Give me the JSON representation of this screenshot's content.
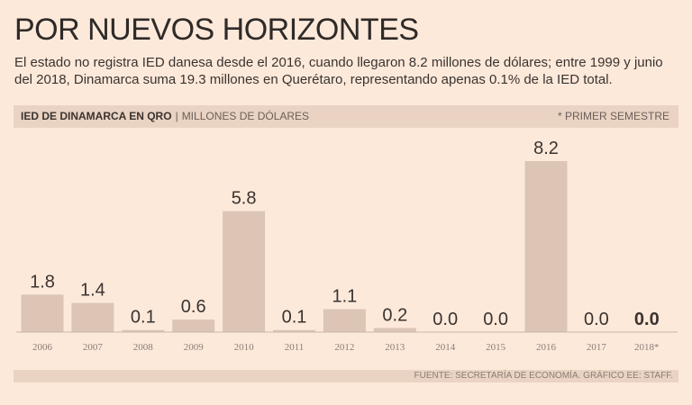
{
  "title": "POR NUEVOS HORIZONTES",
  "subtitle": "El estado no registra IED danesa desde el 2016, cuando llegaron 8.2 millones de dólares; entre 1999 y junio del 2018, Dinamarca suma 19.3 millones en Querétaro, representando apenas 0.1% de la IED total.",
  "band": {
    "label": "IED DE DINAMARCA EN QRO",
    "unit": "MILLONES DE DÓLARES",
    "note": "* PRIMER SEMESTRE"
  },
  "source": "FUENTE: SECRETARÍA DE ECONOMÍA. GRÁFICO EE: STAFF.",
  "colors": {
    "bar": "#dcc5b5",
    "background": "#fde9da",
    "band": "#ead3c2"
  },
  "chart_data": {
    "type": "bar",
    "categories": [
      "2006",
      "2007",
      "2008",
      "2009",
      "2010",
      "2011",
      "2012",
      "2013",
      "2014",
      "2015",
      "2016",
      "2017",
      "2018*"
    ],
    "values": [
      1.8,
      1.4,
      0.1,
      0.6,
      5.8,
      0.1,
      1.1,
      0.2,
      0.0,
      0.0,
      8.2,
      0.0,
      0.0
    ],
    "labels": [
      "1.8",
      "1.4",
      "0.1",
      "0.6",
      "5.8",
      "0.1",
      "1.1",
      "0.2",
      "0.0",
      "0.0",
      "8.2",
      "0.0",
      "0.0"
    ],
    "ylim": [
      0,
      8.2
    ],
    "grid": false,
    "highlight_label_index": 12
  }
}
